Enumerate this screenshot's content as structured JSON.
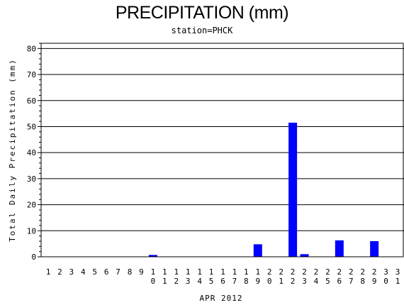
{
  "chart_data": {
    "type": "bar",
    "title": "PRECIPITATION (mm)",
    "subtitle": "station=PHCK",
    "xlabel": "APR 2012",
    "ylabel": "Total Daily Precipitation (mm)",
    "ylim": [
      0,
      82
    ],
    "yticks": [
      0,
      10,
      20,
      30,
      40,
      50,
      60,
      70,
      80
    ],
    "grid": true,
    "bar_color": "#0000ff",
    "categories": [
      "1",
      "2",
      "3",
      "4",
      "5",
      "6",
      "7",
      "8",
      "9",
      "10",
      "11",
      "12",
      "13",
      "14",
      "15",
      "16",
      "17",
      "18",
      "19",
      "20",
      "21",
      "22",
      "23",
      "24",
      "25",
      "26",
      "27",
      "28",
      "29",
      "30",
      "31"
    ],
    "values": [
      0,
      0,
      0,
      0,
      0,
      0,
      0,
      0,
      0,
      0.7,
      0,
      0,
      0,
      0,
      0,
      0,
      0,
      0,
      4.8,
      0,
      0,
      51.5,
      1.0,
      0,
      0,
      6.3,
      0,
      0,
      6.0,
      0,
      0
    ]
  }
}
